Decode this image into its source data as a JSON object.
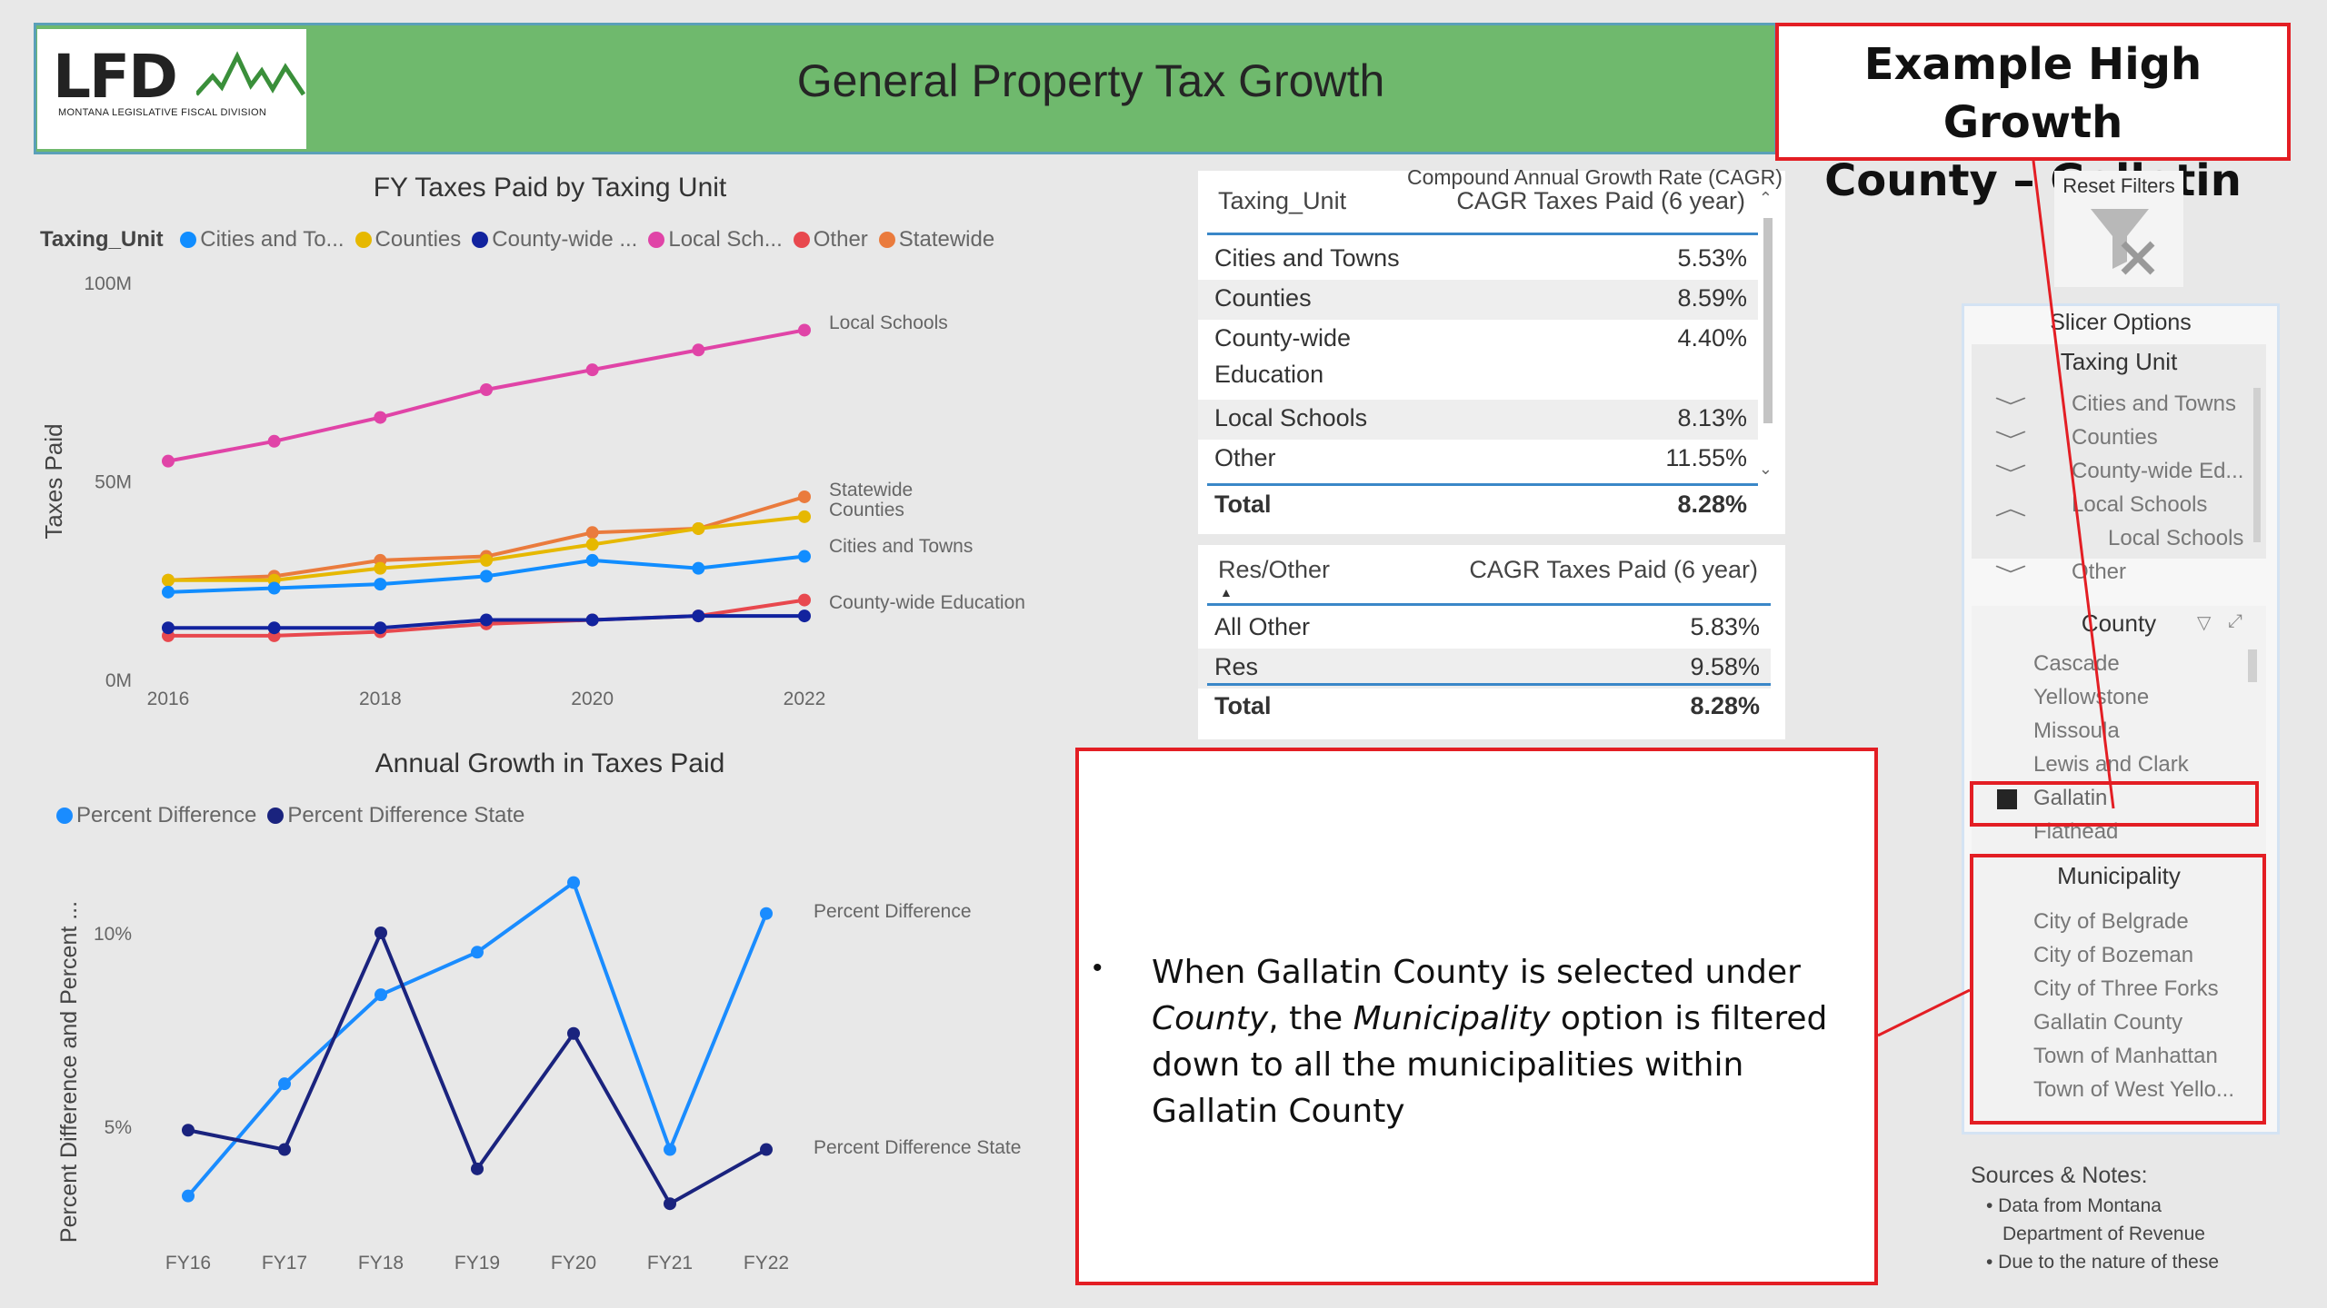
{
  "header": {
    "logo_text": "LFD",
    "logo_subtext": "MONTANA LEGISLATIVE FISCAL DIVISION",
    "title": "General Property Tax Growth",
    "example_line1": "Example High Growth",
    "example_line2": "County – Gallatin"
  },
  "chart_data": [
    {
      "type": "line",
      "title": "FY Taxes Paid by Taxing Unit",
      "legend_title": "Taxing_Unit",
      "legend_items": [
        "Cities and To...",
        "Counties",
        "County-wide ...",
        "Local Sch...",
        "Other",
        "Statewide"
      ],
      "legend_colors": [
        "#118dff",
        "#e6b800",
        "#12239e",
        "#e044a7",
        "#e8484e",
        "#ea7b3d"
      ],
      "ylabel": "Taxes Paid",
      "y_ticks": [
        "0M",
        "50M",
        "100M"
      ],
      "ylim": [
        0,
        100
      ],
      "x": [
        2016,
        2017,
        2018,
        2019,
        2020,
        2021,
        2022
      ],
      "x_ticks": [
        "2016",
        "2018",
        "2020",
        "2022"
      ],
      "series": [
        {
          "name": "Local Schools",
          "color": "#e044a7",
          "values": [
            55,
            60,
            66,
            73,
            78,
            83,
            88
          ]
        },
        {
          "name": "Statewide",
          "color": "#ea7b3d",
          "values": [
            25,
            26,
            30,
            31,
            37,
            38,
            46
          ]
        },
        {
          "name": "Counties",
          "color": "#e6b800",
          "values": [
            25,
            25,
            28,
            30,
            34,
            38,
            41
          ]
        },
        {
          "name": "Cities and Towns",
          "color": "#118dff",
          "values": [
            22,
            23,
            24,
            26,
            30,
            28,
            31
          ]
        },
        {
          "name": "Other",
          "color": "#e8484e",
          "values": [
            11,
            11,
            12,
            14,
            15,
            16,
            20
          ]
        },
        {
          "name": "County-wide Education",
          "color": "#12239e",
          "values": [
            13,
            13,
            13,
            15,
            15,
            16,
            16
          ]
        }
      ],
      "end_labels": [
        "Local Schools",
        "Statewide",
        "Counties",
        "Cities and Towns",
        "County-wide Education"
      ]
    },
    {
      "type": "line",
      "title": "Annual Growth in Taxes Paid",
      "legend_items": [
        "Percent Difference",
        "Percent Difference State"
      ],
      "legend_colors": [
        "#1a8cff",
        "#1a237e"
      ],
      "ylabel": "Percent Difference and Percent ...",
      "y_ticks": [
        "5%",
        "10%"
      ],
      "ylim": [
        3,
        12
      ],
      "x": [
        "FY16",
        "FY17",
        "FY18",
        "FY19",
        "FY20",
        "FY21",
        "FY22"
      ],
      "series": [
        {
          "name": "Percent Difference",
          "color": "#1a8cff",
          "values": [
            3.2,
            6.1,
            8.4,
            9.5,
            11.3,
            4.4,
            10.5
          ]
        },
        {
          "name": "Percent Difference State",
          "color": "#1a237e",
          "values": [
            4.9,
            4.4,
            10.0,
            3.9,
            7.4,
            3.0,
            4.4
          ]
        }
      ],
      "end_labels": [
        "Percent Difference",
        "Percent Difference State"
      ]
    }
  ],
  "cagr_table": {
    "super_header": "Compound Annual Growth Rate (CAGR)",
    "col1": "Taxing_Unit",
    "col2": "CAGR Taxes Paid (6 year)",
    "rows": [
      {
        "label": "Cities and Towns",
        "value": "5.53%"
      },
      {
        "label": "Counties",
        "value": "8.59%"
      },
      {
        "label": "County-wide",
        "label2": "Education",
        "value": "4.40%"
      },
      {
        "label": "Local Schools",
        "value": "8.13%"
      },
      {
        "label": "Other",
        "value": "11.55%"
      }
    ],
    "total_label": "Total",
    "total_value": "8.28%"
  },
  "res_table": {
    "col1": "Res/Other",
    "col2": "CAGR Taxes Paid (6 year)",
    "rows": [
      {
        "label": "All Other",
        "value": "5.83%"
      },
      {
        "label": "Res",
        "value": "9.58%"
      }
    ],
    "total_label": "Total",
    "total_value": "8.28%"
  },
  "reset_filters": "Reset Filters",
  "slicer": {
    "title": "Slicer Options",
    "taxing_unit_header": "Taxing Unit",
    "taxing_units": [
      "Cities and Towns",
      "Counties",
      "County-wide Ed...",
      "Local Schools",
      "Local Schools",
      "Other"
    ],
    "county_header": "County",
    "counties": [
      "Cascade",
      "Yellowstone",
      "Missoula",
      "Lewis and Clark",
      "Gallatin",
      "Flathead"
    ],
    "municipality_header": "Municipality",
    "municipalities": [
      "City of Belgrade",
      "City of Bozeman",
      "City of Three Forks",
      "Gallatin County",
      "Town of Manhattan",
      "Town of West Yello..."
    ]
  },
  "note": {
    "bullet": "•",
    "p1": "When Gallatin County is selected under ",
    "em1": "County",
    "p2": ", the ",
    "em2": "Municipality",
    "p3": " option is filtered down to all the municipalities within Gallatin County"
  },
  "sources": {
    "title": "Sources & Notes:",
    "line1": "• Data from Montana",
    "line2": "Department of Revenue",
    "line3": "• Due to the nature of these"
  }
}
